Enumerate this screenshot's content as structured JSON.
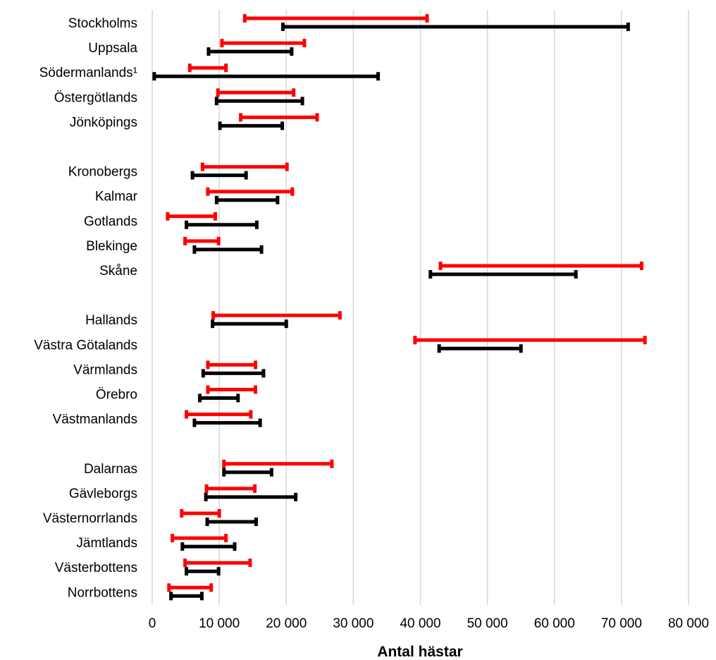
{
  "chart_data": {
    "type": "range-bar",
    "title": "",
    "xlabel": "Antal hästar",
    "ylabel": "",
    "xlim": [
      0,
      80000
    ],
    "x_ticks": [
      0,
      10000,
      20000,
      30000,
      40000,
      50000,
      60000,
      70000,
      80000
    ],
    "x_tick_labels": [
      "0",
      "10 000",
      "20 000",
      "30 000",
      "40 000",
      "50 000",
      "60 000",
      "70 000",
      "80 000"
    ],
    "grid": "vertical",
    "legend": "none",
    "series_colors": [
      "#ff0000",
      "#000000"
    ],
    "categories": [
      "Stockholms",
      "Uppsala",
      "Södermanlands¹",
      "Östergötlands",
      "Jönköpings",
      "",
      "Kronobergs",
      "Kalmar",
      "Gotlands",
      "Blekinge",
      "Skåne",
      "",
      "Hallands",
      "Västra Götalands",
      "Värmlands",
      "Örebro",
      "Västmanlands",
      "",
      "Dalarnas",
      "Gävleborgs",
      "Västernorrlands",
      "Jämtlands",
      "Västerbottens",
      "Norrbottens"
    ],
    "series": [
      {
        "color": "#ff0000",
        "ranges": [
          [
            13800,
            41000
          ],
          [
            10400,
            22700
          ],
          [
            5600,
            11000
          ],
          [
            9800,
            21100
          ],
          [
            13200,
            24600
          ],
          null,
          [
            7500,
            20100
          ],
          [
            8300,
            20900
          ],
          [
            2300,
            9400
          ],
          [
            4900,
            9900
          ],
          [
            43000,
            73000
          ],
          null,
          [
            9100,
            28000
          ],
          [
            39200,
            73500
          ],
          [
            8300,
            15400
          ],
          [
            8300,
            15400
          ],
          [
            5100,
            14700
          ],
          null,
          [
            10700,
            26800
          ],
          [
            8100,
            15300
          ],
          [
            4400,
            10000
          ],
          [
            3000,
            11000
          ],
          [
            4900,
            14600
          ],
          [
            2500,
            8800
          ]
        ]
      },
      {
        "color": "#000000",
        "ranges": [
          [
            19500,
            71000
          ],
          [
            8400,
            20800
          ],
          [
            300,
            33700
          ],
          [
            9600,
            22400
          ],
          [
            10100,
            19400
          ],
          null,
          [
            6000,
            14000
          ],
          [
            9600,
            18700
          ],
          [
            5100,
            15600
          ],
          [
            6300,
            16300
          ],
          [
            41500,
            63200
          ],
          null,
          [
            9000,
            20000
          ],
          [
            42800,
            55000
          ],
          [
            7600,
            16600
          ],
          [
            7100,
            12800
          ],
          [
            6300,
            16100
          ],
          null,
          [
            10700,
            17800
          ],
          [
            8000,
            21400
          ],
          [
            8200,
            15500
          ],
          [
            4500,
            12300
          ],
          [
            5100,
            9900
          ],
          [
            2800,
            7400
          ]
        ]
      }
    ]
  }
}
